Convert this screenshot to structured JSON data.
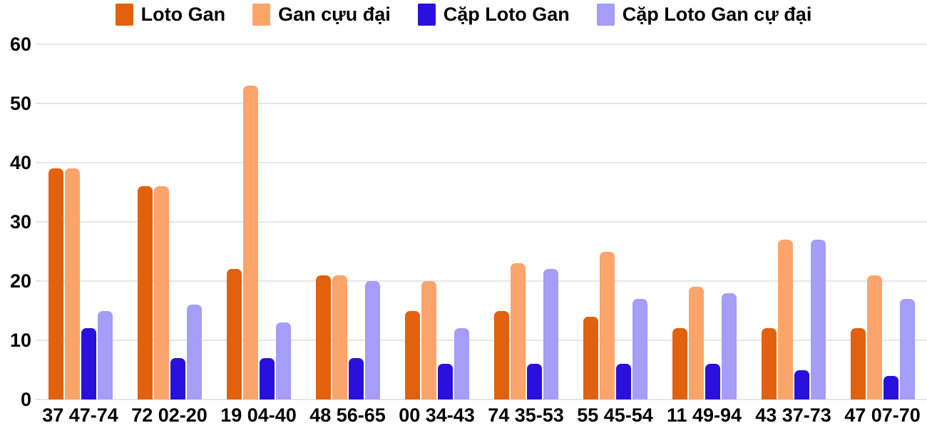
{
  "chart_data": {
    "type": "bar",
    "title": "",
    "xlabel": "",
    "ylabel": "",
    "ylim": [
      0,
      60
    ],
    "y_ticks": [
      0,
      10,
      20,
      30,
      40,
      50,
      60
    ],
    "grid": true,
    "legend_position": "top",
    "background_color": "#ffffff",
    "gridline_color": "#e6e6e6",
    "text_color": "#000000",
    "categories": [
      "37 47-74",
      "72 02-20",
      "19 04-40",
      "48 56-65",
      "00 34-43",
      "74 35-53",
      "55 45-54",
      "11 49-94",
      "43 37-73",
      "47 07-70"
    ],
    "series": [
      {
        "name": "Loto Gan",
        "slug": "loto-gan",
        "color": "#e2610e",
        "values": [
          39,
          36,
          22,
          21,
          15,
          15,
          14,
          12,
          12,
          12
        ]
      },
      {
        "name": "Gan cựu đại",
        "slug": "gan-cuu-dai",
        "color": "#fba46c",
        "values": [
          39,
          36,
          53,
          21,
          20,
          23,
          25,
          19,
          27,
          21
        ]
      },
      {
        "name": "Cặp Loto Gan",
        "slug": "cap-loto-gan",
        "color": "#2a10dc",
        "values": [
          12,
          7,
          7,
          7,
          6,
          6,
          6,
          6,
          5,
          4
        ]
      },
      {
        "name": "Cặp Loto Gan cự đại",
        "slug": "cap-loto-gan-cu-dai",
        "color": "#a59df8",
        "values": [
          15,
          16,
          13,
          20,
          12,
          22,
          17,
          18,
          27,
          17
        ]
      }
    ]
  }
}
